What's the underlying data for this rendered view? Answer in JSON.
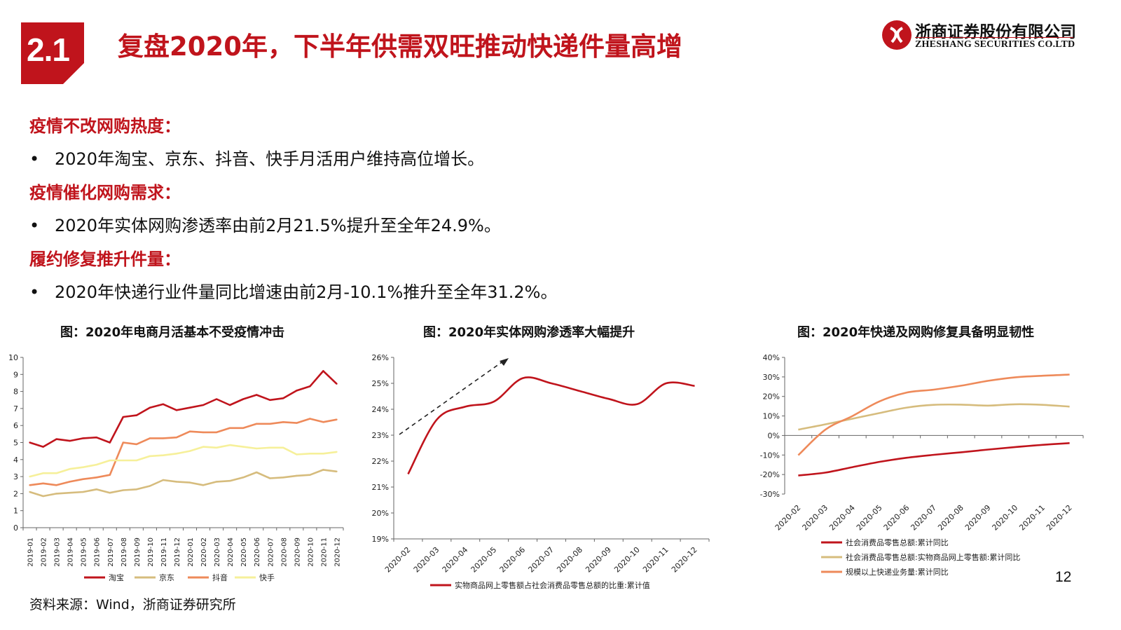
{
  "header": {
    "section_number": "2.1",
    "title": "复盘2020年，下半年供需双旺推动快递件量高增",
    "logo_cn": "浙商证券股份有限公司",
    "logo_en": "ZHESHANG SECURITIES CO.LTD"
  },
  "points": [
    {
      "heading": "疫情不改网购热度：",
      "bullet": "2020年淘宝、京东、抖音、快手月活用户维持高位增长。"
    },
    {
      "heading": "疫情催化网购需求：",
      "bullet": "2020年实体网购渗透率由前2月21.5%提升至全年24.9%。"
    },
    {
      "heading": "履约修复推升件量：",
      "bullet": "2020年快递行业件量同比增速由前2月-10.1%推升至全年31.2%。"
    }
  ],
  "bullet_symbol": "•",
  "footnote": "资料来源：Wind，浙商证券研究所",
  "page_number": "12",
  "chart_data": [
    {
      "type": "line",
      "title": "图：2020年电商月活基本不受疫情冲击",
      "x": [
        "2019-01",
        "2019-02",
        "2019-03",
        "2019-04",
        "2019-05",
        "2019-06",
        "2019-07",
        "2019-08",
        "2019-09",
        "2019-10",
        "2019-11",
        "2019-12",
        "2020-01",
        "2020-02",
        "2020-03",
        "2020-04",
        "2020-05",
        "2020-06",
        "2020-07",
        "2020-08",
        "2020-09",
        "2020-10",
        "2020-11",
        "2020-12"
      ],
      "ylim": [
        0,
        10
      ],
      "yticks": [
        "0",
        "1",
        "2",
        "3",
        "4",
        "5",
        "6",
        "7",
        "8",
        "9",
        "10"
      ],
      "legend_position": "bottom",
      "series": [
        {
          "name": "淘宝",
          "color": "#c0141c",
          "values": [
            5.0,
            4.75,
            5.2,
            5.1,
            5.25,
            5.3,
            5.0,
            6.5,
            6.6,
            7.05,
            7.25,
            6.9,
            7.05,
            7.2,
            7.55,
            7.2,
            7.55,
            7.8,
            7.5,
            7.6,
            8.05,
            8.3,
            9.2,
            8.45
          ]
        },
        {
          "name": "京东",
          "color": "#d6bc7d",
          "values": [
            2.1,
            1.85,
            2.0,
            2.05,
            2.1,
            2.25,
            2.05,
            2.2,
            2.25,
            2.45,
            2.8,
            2.7,
            2.65,
            2.5,
            2.7,
            2.75,
            2.95,
            3.25,
            2.9,
            2.95,
            3.05,
            3.1,
            3.4,
            3.3
          ]
        },
        {
          "name": "抖音",
          "color": "#ee8a5a",
          "values": [
            2.5,
            2.6,
            2.5,
            2.7,
            2.85,
            2.95,
            3.1,
            5.0,
            4.9,
            5.25,
            5.25,
            5.3,
            5.65,
            5.6,
            5.6,
            5.85,
            5.85,
            6.1,
            6.1,
            6.2,
            6.15,
            6.4,
            6.2,
            6.35
          ]
        },
        {
          "name": "快手",
          "color": "#f6f09a",
          "values": [
            3.0,
            3.2,
            3.2,
            3.45,
            3.55,
            3.7,
            3.95,
            3.95,
            3.95,
            4.2,
            4.25,
            4.35,
            4.5,
            4.75,
            4.7,
            4.85,
            4.75,
            4.65,
            4.7,
            4.7,
            4.3,
            4.35,
            4.35,
            4.45
          ]
        }
      ]
    },
    {
      "type": "line",
      "title": "图：2020年实体网购渗透率大幅提升",
      "x": [
        "2020-02",
        "2020-03",
        "2020-04",
        "2020-05",
        "2020-06",
        "2020-07",
        "2020-08",
        "2020-09",
        "2020-10",
        "2020-11",
        "2020-12"
      ],
      "ylim": [
        19,
        26
      ],
      "yticks": [
        "19%",
        "20%",
        "21%",
        "22%",
        "23%",
        "24%",
        "25%",
        "26%"
      ],
      "legend_position": "bottom",
      "annotation": "dashed-arrow-up",
      "series": [
        {
          "name": "实物商品网上零售额占社会消费品零售总额的比重:累计值",
          "color": "#c0141c",
          "values": [
            21.5,
            23.6,
            24.1,
            24.3,
            25.2,
            25.0,
            24.7,
            24.4,
            24.2,
            25.0,
            24.9
          ]
        }
      ]
    },
    {
      "type": "line",
      "title": "图：2020年快递及网购修复具备明显韧性",
      "x": [
        "2020-02",
        "2020-03",
        "2020-04",
        "2020-05",
        "2020-06",
        "2020-07",
        "2020-08",
        "2020-09",
        "2020-10",
        "2020-11",
        "2020-12"
      ],
      "ylim": [
        -30,
        40
      ],
      "yticks": [
        "-30%",
        "-20%",
        "-10%",
        "0%",
        "10%",
        "20%",
        "30%",
        "40%"
      ],
      "legend_position": "bottom",
      "series": [
        {
          "name": "社会消费品零售总额:累计同比",
          "color": "#c0141c",
          "values": [
            -20.5,
            -19.0,
            -16.2,
            -13.5,
            -11.4,
            -9.9,
            -8.6,
            -7.2,
            -5.9,
            -4.8,
            -3.9
          ]
        },
        {
          "name": "社会消费品零售总额:实物商品网上零售额:累计同比",
          "color": "#d6bc7d",
          "values": [
            3.0,
            5.7,
            8.6,
            11.5,
            14.3,
            15.7,
            15.8,
            15.3,
            16.0,
            15.7,
            14.8
          ]
        },
        {
          "name": "规模以上快递业务量:累计同比",
          "color": "#ee8a5a",
          "values": [
            -10.1,
            3.0,
            10.0,
            17.5,
            22.0,
            23.5,
            25.5,
            28.0,
            29.8,
            30.6,
            31.2
          ]
        }
      ]
    }
  ]
}
